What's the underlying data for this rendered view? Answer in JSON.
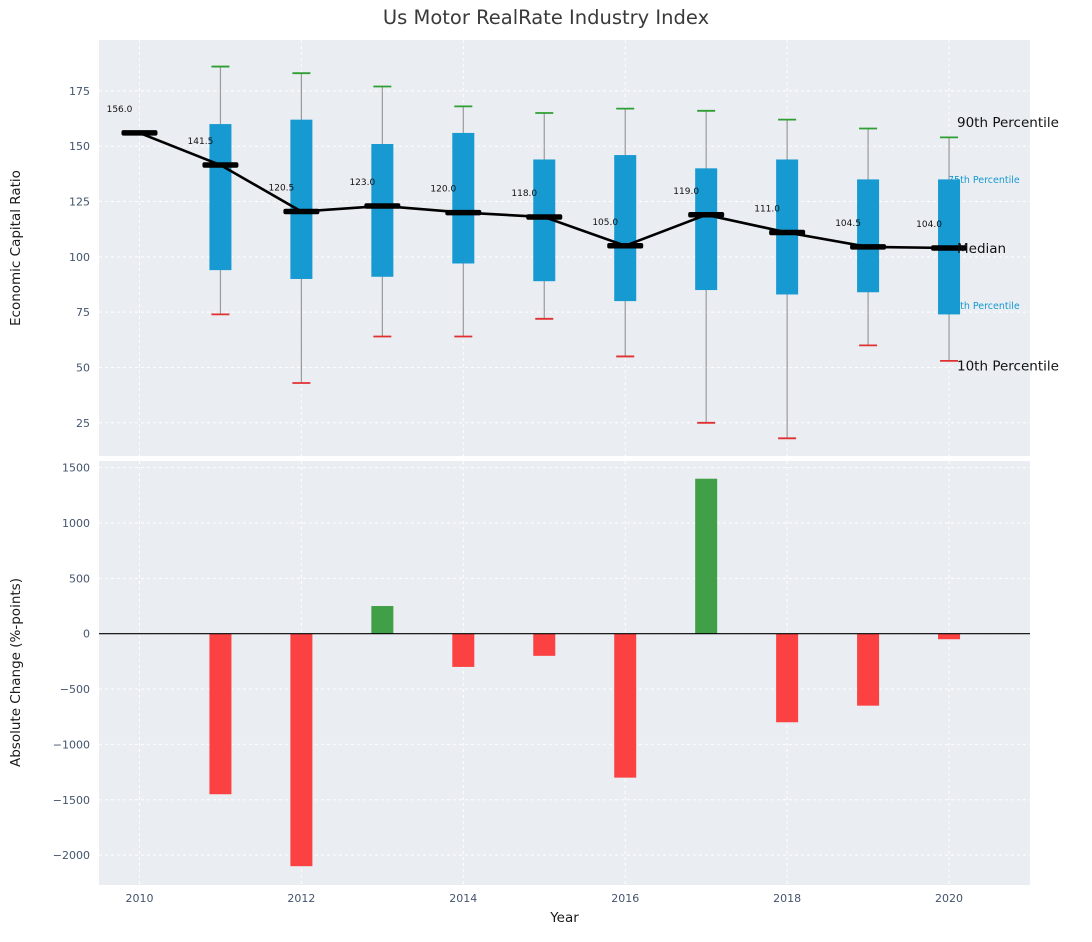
{
  "title": "Us Motor RealRate Industry Index",
  "colors": {
    "axes_bg": "#eaedf2",
    "grid": "#ffffff",
    "tick": "#44546d",
    "box": "#1799d1",
    "whisker": "#9a9a9a",
    "cap_top": "#2e9e33",
    "cap_bottom": "#e03131",
    "median_marker": "#000000",
    "median_line": "#000000",
    "bar_negative": "#fb4141",
    "bar_positive": "#41a047",
    "annotation_major": "#111111",
    "annotation_minor": "#1799d1",
    "median_label": "#111111"
  },
  "chart_data": [
    {
      "type": "boxplot-line",
      "title": "Us Motor RealRate Industry Index",
      "ylabel": "Economic Capital Ratio",
      "ylim": [
        10,
        198
      ],
      "yticks": [
        25,
        50,
        75,
        100,
        125,
        150,
        175
      ],
      "xlim": [
        2009.5,
        2021
      ],
      "xticks": [
        2010,
        2012,
        2014,
        2016,
        2018,
        2020
      ],
      "years": [
        2010,
        2011,
        2012,
        2013,
        2014,
        2015,
        2016,
        2017,
        2018,
        2019,
        2020
      ],
      "median": [
        156.0,
        141.5,
        120.5,
        123.0,
        120.0,
        118.0,
        105.0,
        119.0,
        111.0,
        104.5,
        104.0
      ],
      "median_labels": [
        "156.0",
        "141.5",
        "120.5",
        "123.0",
        "120.0",
        "118.0",
        "105.0",
        "119.0",
        "111.0",
        "104.5",
        "104.0"
      ],
      "p25": [
        null,
        94,
        90,
        91,
        97,
        89,
        80,
        85,
        83,
        84,
        74
      ],
      "p75": [
        null,
        160,
        162,
        151,
        156,
        144,
        146,
        140,
        144,
        135,
        135
      ],
      "p10": [
        null,
        74,
        43,
        64,
        64,
        72,
        55,
        25,
        18,
        60,
        53
      ],
      "p90": [
        null,
        186,
        183,
        177,
        168,
        165,
        167,
        166,
        162,
        158,
        154
      ],
      "legend_annotations": [
        {
          "label": "90th Percentile",
          "value": 161,
          "style": "major"
        },
        {
          "label": "75th Percentile",
          "value": 135,
          "style": "minor"
        },
        {
          "label": "Median",
          "value": 104,
          "style": "major"
        },
        {
          "label": "25th Percentile",
          "value": 78,
          "style": "minor"
        },
        {
          "label": "10th Percentile",
          "value": 51,
          "style": "major"
        }
      ]
    },
    {
      "type": "bar",
      "ylabel": "Absolute Change (%-points)",
      "xlabel": "Year",
      "ylim": [
        -2270,
        1560
      ],
      "yticks": [
        -2000,
        -1500,
        -1000,
        -500,
        0,
        500,
        1000,
        1500
      ],
      "years": [
        2010,
        2011,
        2012,
        2013,
        2014,
        2015,
        2016,
        2017,
        2018,
        2019,
        2020
      ],
      "values": [
        null,
        -1450,
        -2100,
        250,
        -300,
        -200,
        -1300,
        1400,
        -800,
        -650,
        -50
      ]
    }
  ]
}
